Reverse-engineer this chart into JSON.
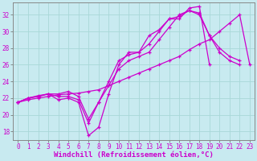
{
  "background_color": "#c8eaf0",
  "grid_color": "#a8d8d8",
  "line_color": "#cc00cc",
  "marker_color": "#cc00cc",
  "xlabel": "Windchill (Refroidissement éolien,°C)",
  "xlabel_fontsize": 6.5,
  "tick_fontsize": 5.5,
  "xlim": [
    -0.5,
    23.5
  ],
  "ylim": [
    17,
    33.5
  ],
  "yticks": [
    18,
    20,
    22,
    24,
    26,
    28,
    30,
    32
  ],
  "xticks": [
    0,
    1,
    2,
    3,
    4,
    5,
    6,
    7,
    8,
    9,
    10,
    11,
    12,
    13,
    14,
    15,
    16,
    17,
    18,
    19,
    20,
    21,
    22,
    23
  ],
  "series": [
    {
      "x": [
        0,
        1,
        2,
        3,
        4,
        5,
        6,
        7,
        8,
        9,
        10,
        11,
        12,
        13,
        14,
        15,
        16,
        17,
        18,
        19,
        20,
        21,
        22,
        23
      ],
      "y": [
        21.5,
        21.8,
        22.0,
        22.2,
        22.4,
        22.5,
        22.6,
        22.8,
        23.0,
        23.5,
        24.0,
        24.5,
        25.0,
        25.5,
        26.0,
        26.5,
        27.0,
        27.8,
        28.5,
        29.0,
        30.0,
        31.0,
        32.0,
        26.0
      ]
    },
    {
      "x": [
        0,
        1,
        2,
        3,
        4,
        5,
        6,
        7,
        8,
        9,
        10,
        11,
        12,
        13,
        14,
        15,
        16,
        17,
        18,
        19,
        20,
        21,
        22,
        23
      ],
      "y": [
        21.5,
        22.0,
        22.2,
        22.5,
        21.8,
        22.0,
        21.5,
        17.5,
        18.5,
        22.5,
        26.0,
        27.5,
        27.5,
        29.5,
        30.2,
        31.5,
        31.5,
        32.8,
        33.0,
        26.0,
        null,
        null,
        null,
        null
      ]
    },
    {
      "x": [
        0,
        1,
        2,
        3,
        4,
        5,
        6,
        7,
        8,
        9,
        10,
        11,
        12,
        13,
        14,
        15,
        16,
        17,
        18,
        19,
        20,
        21,
        22,
        23
      ],
      "y": [
        21.5,
        22.0,
        22.3,
        22.5,
        22.5,
        22.8,
        22.2,
        19.5,
        21.5,
        24.0,
        26.5,
        27.2,
        27.5,
        28.5,
        30.0,
        31.5,
        31.8,
        32.5,
        32.2,
        29.5,
        27.5,
        26.5,
        26.0,
        null
      ]
    },
    {
      "x": [
        0,
        1,
        2,
        3,
        4,
        5,
        6,
        7,
        8,
        9,
        10,
        11,
        12,
        13,
        14,
        15,
        16,
        17,
        18,
        19,
        20,
        21,
        22,
        23
      ],
      "y": [
        21.5,
        22.0,
        22.2,
        22.5,
        22.2,
        22.2,
        21.8,
        19.0,
        21.5,
        23.5,
        25.5,
        26.5,
        27.0,
        27.5,
        29.0,
        30.5,
        32.0,
        32.5,
        32.0,
        29.5,
        28.0,
        27.0,
        26.5,
        null
      ]
    }
  ]
}
